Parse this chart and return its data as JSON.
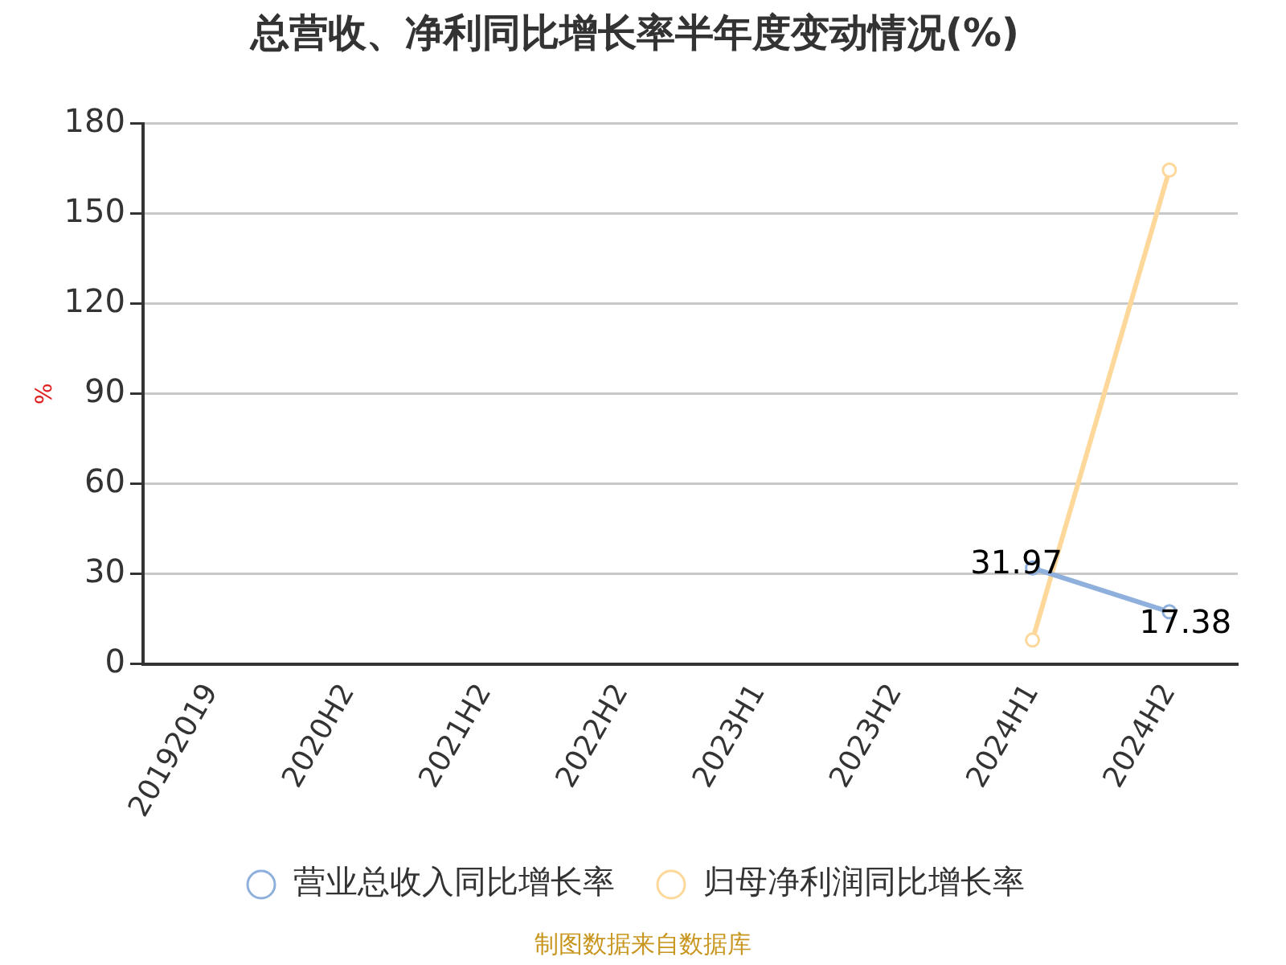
{
  "chart_data": {
    "type": "line",
    "title": "总营收、净利同比增长率半年度变动情况(%)",
    "ylabel": "%",
    "categories": [
      "20192019",
      "2020H2",
      "2021H2",
      "2022H2",
      "2023H1",
      "2023H2",
      "2024H1",
      "2024H2"
    ],
    "series": [
      {
        "name": "营业总收入同比增长率",
        "color": "#8fb0dc",
        "values": [
          null,
          null,
          null,
          null,
          null,
          null,
          31.97,
          17.38
        ],
        "value_labels": [
          null,
          null,
          null,
          null,
          null,
          null,
          "31.97",
          "17.38"
        ]
      },
      {
        "name": "归母净利润同比增长率",
        "color": "#fdd89a",
        "values": [
          null,
          null,
          null,
          null,
          null,
          null,
          8,
          164.5
        ]
      }
    ],
    "ylim": [
      0,
      180
    ],
    "yticks": [
      0,
      30,
      60,
      90,
      120,
      150,
      180
    ],
    "grid": "y",
    "legend": "bottom",
    "marker": "circle",
    "annotations": [
      "制图数据来自数据库"
    ]
  }
}
